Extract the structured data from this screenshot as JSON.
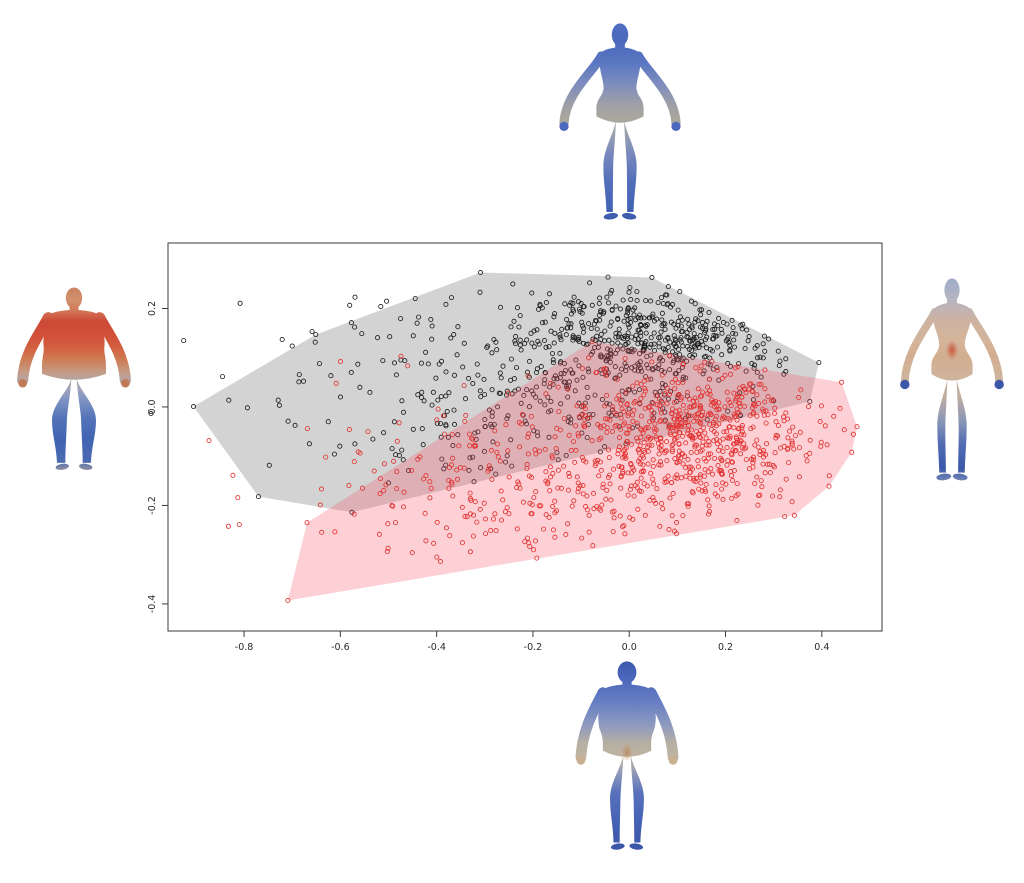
{
  "figure": {
    "background_color": "#ffffff",
    "kind": "scatter plot of two point populations with shaded convex hulls, surrounded by four 3D body-mesh renders"
  },
  "chart_data": {
    "type": "scatter",
    "title": "",
    "xlabel": "",
    "ylabel": "",
    "xlim": [
      -0.958,
      0.525
    ],
    "ylim": [
      -0.455,
      0.333
    ],
    "grid": false,
    "frame": "box",
    "x_tick_values": [
      -0.8,
      -0.6,
      -0.4,
      -0.2,
      0.0,
      0.2,
      0.4
    ],
    "x_tick_labels": [
      "-0.8",
      "-0.6",
      "-0.4",
      "-0.2",
      "0.0",
      "0.2",
      "0.4"
    ],
    "y_tick_values": [
      -0.4,
      -0.2,
      0.0,
      0.2
    ],
    "y_tick_labels": [
      "-0.4",
      "-0.2",
      "0.0",
      "0.2"
    ],
    "series": [
      {
        "name": "group-black",
        "marker": "open-circle",
        "point_color": "#1c1c1c",
        "n": 780,
        "hull_fill": "#828282",
        "hull_opacity": 0.35,
        "hull": [
          [
            -0.905,
            0.001
          ],
          [
            -0.77,
            -0.182
          ],
          [
            -0.576,
            -0.214
          ],
          [
            0.375,
            0.011
          ],
          [
            0.394,
            0.09
          ],
          [
            0.047,
            0.263
          ],
          [
            -0.309,
            0.273
          ],
          [
            -0.651,
            0.147
          ]
        ],
        "clusters": [
          {
            "weight": 0.5,
            "cx": 0.07,
            "cy": 0.15,
            "sx": 0.13,
            "sy": 0.05
          },
          {
            "weight": 0.5,
            "cx": -0.18,
            "cy": 0.03,
            "sx": 0.26,
            "sy": 0.105
          }
        ]
      },
      {
        "name": "group-red",
        "marker": "open-circle",
        "point_color": "#e23333",
        "n": 950,
        "hull_fill": "#f4505f",
        "hull_opacity": 0.27,
        "hull": [
          [
            -0.709,
            -0.393
          ],
          [
            -0.669,
            -0.235
          ],
          [
            -0.077,
            0.133
          ],
          [
            0.441,
            0.05
          ],
          [
            0.473,
            -0.04
          ],
          [
            0.462,
            -0.092
          ],
          [
            0.415,
            -0.161
          ],
          [
            0.343,
            -0.22
          ]
        ],
        "clusters": [
          {
            "weight": 0.55,
            "cx": 0.14,
            "cy": -0.045,
            "sx": 0.13,
            "sy": 0.065
          },
          {
            "weight": 0.45,
            "cx": -0.12,
            "cy": -0.17,
            "sx": 0.26,
            "sy": 0.1
          }
        ]
      }
    ]
  },
  "bodies": [
    {
      "key": "top",
      "icon": "average-female-body-mesh-icon",
      "hand_color": "#4c69bd",
      "spot": null,
      "palette": [
        [
          0,
          "#4f6ec2"
        ],
        [
          0.09,
          "#4a68bc"
        ],
        [
          0.2,
          "#5c78c2"
        ],
        [
          0.3,
          "#7d8cbd"
        ],
        [
          0.4,
          "#9d9fa8"
        ],
        [
          0.47,
          "#aaa79c"
        ],
        [
          0.55,
          "#9aa0ae"
        ],
        [
          0.65,
          "#7788bd"
        ],
        [
          0.78,
          "#5570bb"
        ],
        [
          0.92,
          "#4463b6"
        ],
        [
          1,
          "#3c56a6"
        ]
      ]
    },
    {
      "key": "left",
      "icon": "heavy-female-body-mesh-icon",
      "hand_color": "#c07a58",
      "spot": null,
      "palette": [
        [
          0,
          "#c98464"
        ],
        [
          0.07,
          "#d2906c"
        ],
        [
          0.12,
          "#d2795a"
        ],
        [
          0.18,
          "#cc4a36"
        ],
        [
          0.25,
          "#d14f37"
        ],
        [
          0.31,
          "#d35c3f"
        ],
        [
          0.38,
          "#cf7a52"
        ],
        [
          0.45,
          "#c49a83"
        ],
        [
          0.52,
          "#adaab4"
        ],
        [
          0.6,
          "#7f94c3"
        ],
        [
          0.7,
          "#5373b9"
        ],
        [
          0.82,
          "#4164b2"
        ],
        [
          0.93,
          "#4a6ab2"
        ],
        [
          0.97,
          "#8289a5"
        ],
        [
          1,
          "#b4774e"
        ]
      ]
    },
    {
      "key": "right",
      "icon": "slim-female-body-mesh-icon",
      "hand_color": "#3c57a9",
      "spot": {
        "y": 0.345,
        "color": "#c94a32"
      },
      "palette": [
        [
          0,
          "#a0aecb"
        ],
        [
          0.1,
          "#b7b4c2"
        ],
        [
          0.2,
          "#cdb3a0"
        ],
        [
          0.3,
          "#d4b49a"
        ],
        [
          0.38,
          "#d2ad90"
        ],
        [
          0.48,
          "#cfb49c"
        ],
        [
          0.58,
          "#bcac9f"
        ],
        [
          0.68,
          "#8e99b6"
        ],
        [
          0.8,
          "#526cb4"
        ],
        [
          0.92,
          "#3b57a9"
        ],
        [
          1,
          "#8795b8"
        ]
      ]
    },
    {
      "key": "bottom",
      "icon": "stocky-male-body-mesh-icon",
      "hand_color": "#c9b091",
      "spot": {
        "y": 0.47,
        "color": "#b98a5e"
      },
      "palette": [
        [
          0,
          "#3d59b0"
        ],
        [
          0.1,
          "#4e6abd"
        ],
        [
          0.22,
          "#6a80c2"
        ],
        [
          0.33,
          "#8e9ac0"
        ],
        [
          0.42,
          "#b5aea3"
        ],
        [
          0.5,
          "#c2b5a1"
        ],
        [
          0.57,
          "#939cb8"
        ],
        [
          0.68,
          "#5871bb"
        ],
        [
          0.82,
          "#4763b5"
        ],
        [
          1,
          "#3a53a5"
        ]
      ]
    }
  ]
}
